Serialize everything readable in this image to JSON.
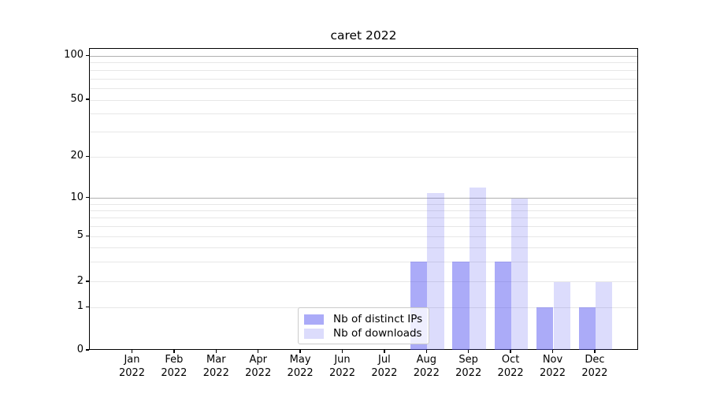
{
  "chart_data": {
    "type": "bar",
    "title": "caret 2022",
    "xlabel": "",
    "ylabel": "",
    "x_axis": {
      "months": [
        "Jan",
        "Feb",
        "Mar",
        "Apr",
        "May",
        "Jun",
        "Jul",
        "Aug",
        "Sep",
        "Oct",
        "Nov",
        "Dec"
      ],
      "year": "2022"
    },
    "y_axis": {
      "scale": "log-like with 0 baseline",
      "tick_labels": [
        "0",
        "1",
        "2",
        "5",
        "10",
        "20",
        "50",
        "100"
      ],
      "tick_values": [
        0,
        1,
        2,
        5,
        10,
        20,
        50,
        100
      ],
      "ylim": [
        0,
        112
      ],
      "major_gridline_values": [
        10,
        100
      ],
      "minor_gridline_values": [
        1,
        2,
        3,
        4,
        5,
        6,
        7,
        8,
        9,
        20,
        30,
        40,
        50,
        60,
        70,
        80,
        90
      ]
    },
    "series": [
      {
        "name": "Nb of distinct IPs",
        "color": "#5050F07A",
        "values": [
          0,
          0,
          0,
          0,
          0,
          0,
          0,
          3,
          3,
          3,
          1,
          1
        ]
      },
      {
        "name": "Nb of downloads",
        "color": "#5050F033",
        "values": [
          0,
          0,
          0,
          0,
          0,
          0,
          0,
          11,
          12,
          10,
          2,
          2
        ]
      }
    ],
    "legend": {
      "position": "lower center",
      "entries": [
        "Nb of distinct IPs",
        "Nb of downloads"
      ]
    },
    "colors": {
      "major_gridline": "#b0b0b0",
      "minor_gridline": "#e7e7e7",
      "spine": "#000000",
      "background": "#ffffff",
      "text": "#000000"
    },
    "grid": "horizontal only"
  }
}
